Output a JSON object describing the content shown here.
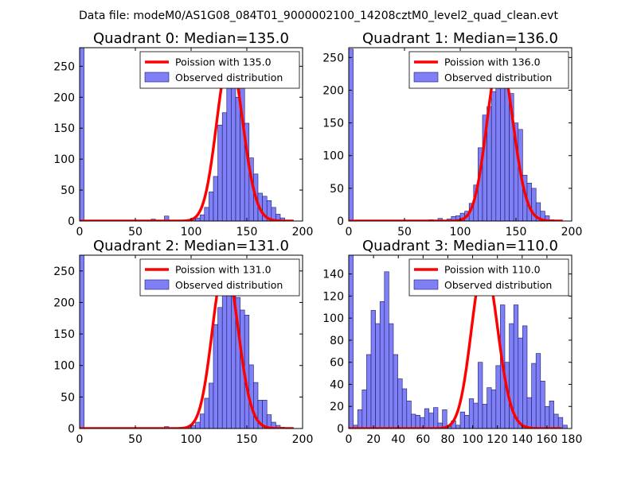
{
  "suptitle": "Data file: modeM0/AS1G08_084T01_9000002100_14208cztM0_level2_quad_clean.evt",
  "colors": {
    "bar": "#7f7ff6",
    "bar_edge": "#1b1b6b",
    "curve": "#ff0000"
  },
  "chart_data": [
    {
      "type": "bar",
      "title": "Quadrant 0: Median=135.0",
      "legend": [
        "Poission with 135.0",
        "Observed distribution"
      ],
      "legend_loc": "upper-right",
      "xlim": [
        0,
        200
      ],
      "ylim": [
        0,
        280
      ],
      "xticks": [
        0,
        50,
        100,
        150,
        200
      ],
      "xtick_labels": [
        "0",
        "50",
        "100",
        "150",
        "200"
      ],
      "yticks": [
        0,
        50,
        100,
        150,
        200,
        250
      ],
      "ytick_labels": [
        "0",
        "50",
        "100",
        "150",
        "200",
        "250"
      ],
      "bin_width": 4,
      "bars": [
        [
          0,
          280
        ],
        [
          64,
          3
        ],
        [
          76,
          8
        ],
        [
          96,
          1
        ],
        [
          100,
          3
        ],
        [
          104,
          5
        ],
        [
          108,
          10
        ],
        [
          112,
          22
        ],
        [
          116,
          47
        ],
        [
          120,
          72
        ],
        [
          124,
          155
        ],
        [
          128,
          175
        ],
        [
          132,
          235
        ],
        [
          136,
          215
        ],
        [
          140,
          200
        ],
        [
          144,
          218
        ],
        [
          148,
          158
        ],
        [
          152,
          102
        ],
        [
          156,
          76
        ],
        [
          160,
          45
        ],
        [
          164,
          40
        ],
        [
          168,
          33
        ],
        [
          172,
          22
        ],
        [
          176,
          11
        ],
        [
          180,
          5
        ],
        [
          184,
          1
        ]
      ],
      "poisson_mean": 135,
      "poisson_peak": 265
    },
    {
      "type": "bar",
      "title": "Quadrant 1: Median=136.0",
      "legend": [
        "Poission with 136.0",
        "Observed distribution"
      ],
      "legend_loc": "upper-right",
      "xlim": [
        0,
        200
      ],
      "ylim": [
        0,
        265
      ],
      "xticks": [
        0,
        50,
        100,
        150,
        200
      ],
      "xtick_labels": [
        "0",
        "50",
        "100",
        "150",
        "200"
      ],
      "yticks": [
        0,
        50,
        100,
        150,
        200,
        250
      ],
      "ytick_labels": [
        "0",
        "50",
        "100",
        "150",
        "200",
        "250"
      ],
      "bin_width": 4,
      "bars": [
        [
          0,
          263
        ],
        [
          60,
          1
        ],
        [
          72,
          2
        ],
        [
          80,
          4
        ],
        [
          88,
          3
        ],
        [
          92,
          7
        ],
        [
          96,
          8
        ],
        [
          100,
          12
        ],
        [
          104,
          15
        ],
        [
          108,
          27
        ],
        [
          112,
          55
        ],
        [
          116,
          112
        ],
        [
          120,
          162
        ],
        [
          124,
          175
        ],
        [
          128,
          198
        ],
        [
          132,
          250
        ],
        [
          136,
          215
        ],
        [
          140,
          225
        ],
        [
          144,
          195
        ],
        [
          148,
          150
        ],
        [
          152,
          140
        ],
        [
          156,
          70
        ],
        [
          160,
          58
        ],
        [
          164,
          50
        ],
        [
          168,
          28
        ],
        [
          172,
          15
        ],
        [
          176,
          8
        ],
        [
          180,
          2
        ]
      ],
      "poisson_mean": 136,
      "poisson_peak": 250
    },
    {
      "type": "bar",
      "title": "Quadrant 2: Median=131.0",
      "legend": [
        "Poission with 131.0",
        "Observed distribution"
      ],
      "legend_loc": "upper-right",
      "xlim": [
        0,
        200
      ],
      "ylim": [
        0,
        275
      ],
      "xticks": [
        0,
        50,
        100,
        150,
        200
      ],
      "xtick_labels": [
        "0",
        "50",
        "100",
        "150",
        "200"
      ],
      "yticks": [
        0,
        50,
        100,
        150,
        200,
        250
      ],
      "ytick_labels": [
        "0",
        "50",
        "100",
        "150",
        "200",
        "250"
      ],
      "bin_width": 4,
      "bars": [
        [
          0,
          275
        ],
        [
          76,
          3
        ],
        [
          92,
          2
        ],
        [
          96,
          3
        ],
        [
          100,
          5
        ],
        [
          104,
          10
        ],
        [
          108,
          23
        ],
        [
          112,
          48
        ],
        [
          116,
          72
        ],
        [
          120,
          165
        ],
        [
          124,
          192
        ],
        [
          128,
          245
        ],
        [
          132,
          230
        ],
        [
          136,
          260
        ],
        [
          140,
          208
        ],
        [
          144,
          188
        ],
        [
          148,
          180
        ],
        [
          152,
          101
        ],
        [
          156,
          73
        ],
        [
          160,
          45
        ],
        [
          164,
          45
        ],
        [
          168,
          22
        ],
        [
          172,
          10
        ],
        [
          176,
          5
        ],
        [
          180,
          2
        ]
      ],
      "poisson_mean": 131,
      "poisson_peak": 262
    },
    {
      "type": "bar",
      "title": "Quadrant 3: Median=110.0",
      "legend": [
        "Poission with 110.0",
        "Observed distribution"
      ],
      "legend_loc": "upper-right",
      "xlim": [
        0,
        180
      ],
      "ylim": [
        0,
        157
      ],
      "xticks": [
        0,
        20,
        40,
        60,
        80,
        100,
        120,
        140,
        160,
        180
      ],
      "xtick_labels": [
        "0",
        "20",
        "40",
        "60",
        "80",
        "100",
        "120",
        "140",
        "160",
        "180"
      ],
      "yticks": [
        0,
        20,
        40,
        60,
        80,
        100,
        120,
        140
      ],
      "ytick_labels": [
        "0",
        "20",
        "40",
        "60",
        "80",
        "100",
        "120",
        "140"
      ],
      "bin_width": 3.6,
      "bars": [
        [
          0,
          157
        ],
        [
          3.6,
          3
        ],
        [
          7.2,
          17
        ],
        [
          10.8,
          35
        ],
        [
          14.4,
          67
        ],
        [
          18,
          107
        ],
        [
          21.6,
          95
        ],
        [
          25.2,
          115
        ],
        [
          28.8,
          142
        ],
        [
          32.4,
          95
        ],
        [
          36,
          67
        ],
        [
          39.6,
          45
        ],
        [
          43.2,
          36
        ],
        [
          46.8,
          25
        ],
        [
          50.4,
          13
        ],
        [
          54,
          12
        ],
        [
          57.6,
          10
        ],
        [
          61.2,
          18
        ],
        [
          64.8,
          14
        ],
        [
          68.4,
          19
        ],
        [
          72,
          5
        ],
        [
          75.6,
          17
        ],
        [
          79.2,
          2
        ],
        [
          82.8,
          7
        ],
        [
          86.4,
          3
        ],
        [
          90,
          15
        ],
        [
          93.6,
          12
        ],
        [
          97.2,
          27
        ],
        [
          100.8,
          23
        ],
        [
          104.4,
          60
        ],
        [
          108,
          22
        ],
        [
          111.6,
          37
        ],
        [
          115.2,
          35
        ],
        [
          118.8,
          57
        ],
        [
          122.4,
          112
        ],
        [
          126,
          60
        ],
        [
          129.6,
          95
        ],
        [
          133.2,
          112
        ],
        [
          136.8,
          82
        ],
        [
          140.4,
          93
        ],
        [
          144,
          28
        ],
        [
          147.6,
          59
        ],
        [
          151.2,
          68
        ],
        [
          154.8,
          43
        ],
        [
          158.4,
          20
        ],
        [
          162,
          25
        ],
        [
          165.6,
          13
        ],
        [
          169.2,
          10
        ],
        [
          172.8,
          3
        ]
      ],
      "poisson_mean": 110,
      "poisson_peak": 150
    }
  ]
}
